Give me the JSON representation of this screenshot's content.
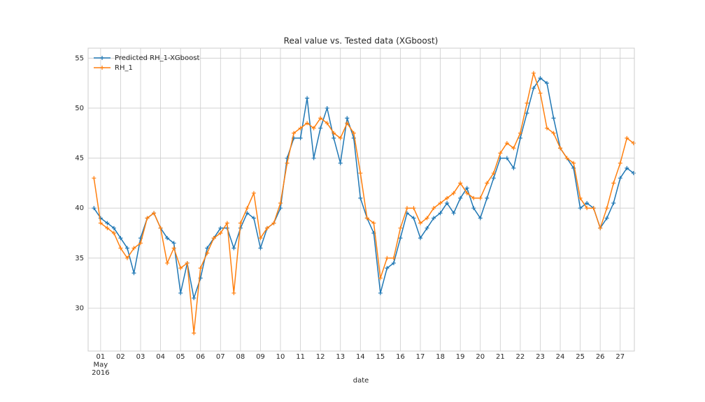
{
  "chart_data": {
    "type": "line",
    "title": "Real value vs. Tested data (XGboost)",
    "x_label": "date",
    "x": [
      "2016-04-30 16:00",
      "2016-05-01 00:00",
      "2016-05-01 08:00",
      "2016-05-01 16:00",
      "2016-05-02 00:00",
      "2016-05-02 08:00",
      "2016-05-02 16:00",
      "2016-05-03 00:00",
      "2016-05-03 08:00",
      "2016-05-03 16:00",
      "2016-05-04 00:00",
      "2016-05-04 08:00",
      "2016-05-04 16:00",
      "2016-05-05 00:00",
      "2016-05-05 08:00",
      "2016-05-05 16:00",
      "2016-05-06 00:00",
      "2016-05-06 08:00",
      "2016-05-06 16:00",
      "2016-05-07 00:00",
      "2016-05-07 08:00",
      "2016-05-07 16:00",
      "2016-05-08 00:00",
      "2016-05-08 08:00",
      "2016-05-08 16:00",
      "2016-05-09 00:00",
      "2016-05-09 08:00",
      "2016-05-09 16:00",
      "2016-05-10 00:00",
      "2016-05-10 08:00",
      "2016-05-10 16:00",
      "2016-05-11 00:00",
      "2016-05-11 08:00",
      "2016-05-11 16:00",
      "2016-05-12 00:00",
      "2016-05-12 08:00",
      "2016-05-12 16:00",
      "2016-05-13 00:00",
      "2016-05-13 08:00",
      "2016-05-13 16:00",
      "2016-05-14 00:00",
      "2016-05-14 08:00",
      "2016-05-14 16:00",
      "2016-05-15 00:00",
      "2016-05-15 08:00",
      "2016-05-15 16:00",
      "2016-05-16 00:00",
      "2016-05-16 08:00",
      "2016-05-16 16:00",
      "2016-05-17 00:00",
      "2016-05-17 08:00",
      "2016-05-17 16:00",
      "2016-05-18 00:00",
      "2016-05-18 08:00",
      "2016-05-18 16:00",
      "2016-05-19 00:00",
      "2016-05-19 08:00",
      "2016-05-19 16:00",
      "2016-05-20 00:00",
      "2016-05-20 08:00",
      "2016-05-20 16:00",
      "2016-05-21 00:00",
      "2016-05-21 08:00",
      "2016-05-21 16:00",
      "2016-05-22 00:00",
      "2016-05-22 08:00",
      "2016-05-22 16:00",
      "2016-05-23 00:00",
      "2016-05-23 08:00",
      "2016-05-23 16:00",
      "2016-05-24 00:00",
      "2016-05-24 08:00",
      "2016-05-24 16:00",
      "2016-05-25 00:00",
      "2016-05-25 08:00",
      "2016-05-25 16:00",
      "2016-05-26 00:00",
      "2016-05-26 08:00",
      "2016-05-26 16:00",
      "2016-05-27 00:00",
      "2016-05-27 08:00",
      "2016-05-27 16:00"
    ],
    "series": [
      {
        "name": "Predicted RH_1-XGboost",
        "color": "#1f77b4",
        "values": [
          40,
          39,
          38.5,
          38,
          37,
          36,
          33.5,
          37,
          39,
          39.5,
          38,
          37,
          36.5,
          31.5,
          34.5,
          31,
          33,
          36,
          37,
          38,
          38,
          36,
          38,
          39.5,
          39,
          36,
          38,
          38.5,
          40,
          45,
          47,
          47,
          51,
          45,
          48,
          50,
          47,
          44.5,
          49,
          47,
          41,
          39,
          37.5,
          31.5,
          34,
          34.5,
          37,
          39.5,
          39,
          37,
          38,
          39,
          39.5,
          40.5,
          39.5,
          41,
          42,
          40,
          39,
          41,
          43,
          45,
          45,
          44,
          47,
          49.5,
          52,
          53,
          52.5,
          49,
          46,
          45,
          44,
          40,
          40.5,
          40,
          38,
          39,
          40.5,
          43,
          44,
          43.5
        ]
      },
      {
        "name": "RH_1",
        "color": "#ff7f0e",
        "values": [
          43,
          38.5,
          38,
          37.5,
          36,
          35,
          36,
          36.5,
          39,
          39.5,
          38,
          34.5,
          36,
          34,
          34.5,
          27.5,
          34,
          35.5,
          37,
          37.5,
          38.5,
          31.5,
          38.5,
          40,
          41.5,
          37,
          38,
          38.5,
          40.5,
          44.5,
          47.5,
          48,
          48.5,
          48,
          49,
          48.5,
          47.5,
          47,
          48.5,
          47.5,
          43.5,
          39,
          38.5,
          33,
          35,
          35,
          38,
          40,
          40,
          38.5,
          39,
          40,
          40.5,
          41,
          41.5,
          42.5,
          41.5,
          41,
          41,
          42.5,
          43.5,
          45.5,
          46.5,
          46,
          47.5,
          50.5,
          53.5,
          51.5,
          48,
          47.5,
          46,
          45,
          44.5,
          41,
          40,
          40,
          38,
          40,
          42.5,
          44.5,
          47,
          46.5
        ]
      }
    ],
    "xlim": [
      "2016-04-30 09:00",
      "2016-05-27 17:00"
    ],
    "xticks": [
      {
        "value": "2016-05-01",
        "label": "01\nMay\n2016"
      },
      {
        "value": "2016-05-02",
        "label": "02"
      },
      {
        "value": "2016-05-03",
        "label": "03"
      },
      {
        "value": "2016-05-04",
        "label": "04"
      },
      {
        "value": "2016-05-05",
        "label": "05"
      },
      {
        "value": "2016-05-06",
        "label": "06"
      },
      {
        "value": "2016-05-07",
        "label": "07"
      },
      {
        "value": "2016-05-08",
        "label": "08"
      },
      {
        "value": "2016-05-09",
        "label": "09"
      },
      {
        "value": "2016-05-10",
        "label": "10"
      },
      {
        "value": "2016-05-11",
        "label": "11"
      },
      {
        "value": "2016-05-12",
        "label": "12"
      },
      {
        "value": "2016-05-13",
        "label": "13"
      },
      {
        "value": "2016-05-14",
        "label": "14"
      },
      {
        "value": "2016-05-15",
        "label": "15"
      },
      {
        "value": "2016-05-16",
        "label": "16"
      },
      {
        "value": "2016-05-17",
        "label": "17"
      },
      {
        "value": "2016-05-18",
        "label": "18"
      },
      {
        "value": "2016-05-19",
        "label": "19"
      },
      {
        "value": "2016-05-20",
        "label": "20"
      },
      {
        "value": "2016-05-21",
        "label": "21"
      },
      {
        "value": "2016-05-22",
        "label": "22"
      },
      {
        "value": "2016-05-23",
        "label": "23"
      },
      {
        "value": "2016-05-24",
        "label": "24"
      },
      {
        "value": "2016-05-25",
        "label": "25"
      },
      {
        "value": "2016-05-26",
        "label": "26"
      },
      {
        "value": "2016-05-27",
        "label": "27"
      }
    ],
    "ylim": [
      25.7,
      56.0
    ],
    "yticks": [
      30,
      35,
      40,
      45,
      50,
      55
    ],
    "grid": true,
    "legend": "upper left"
  }
}
